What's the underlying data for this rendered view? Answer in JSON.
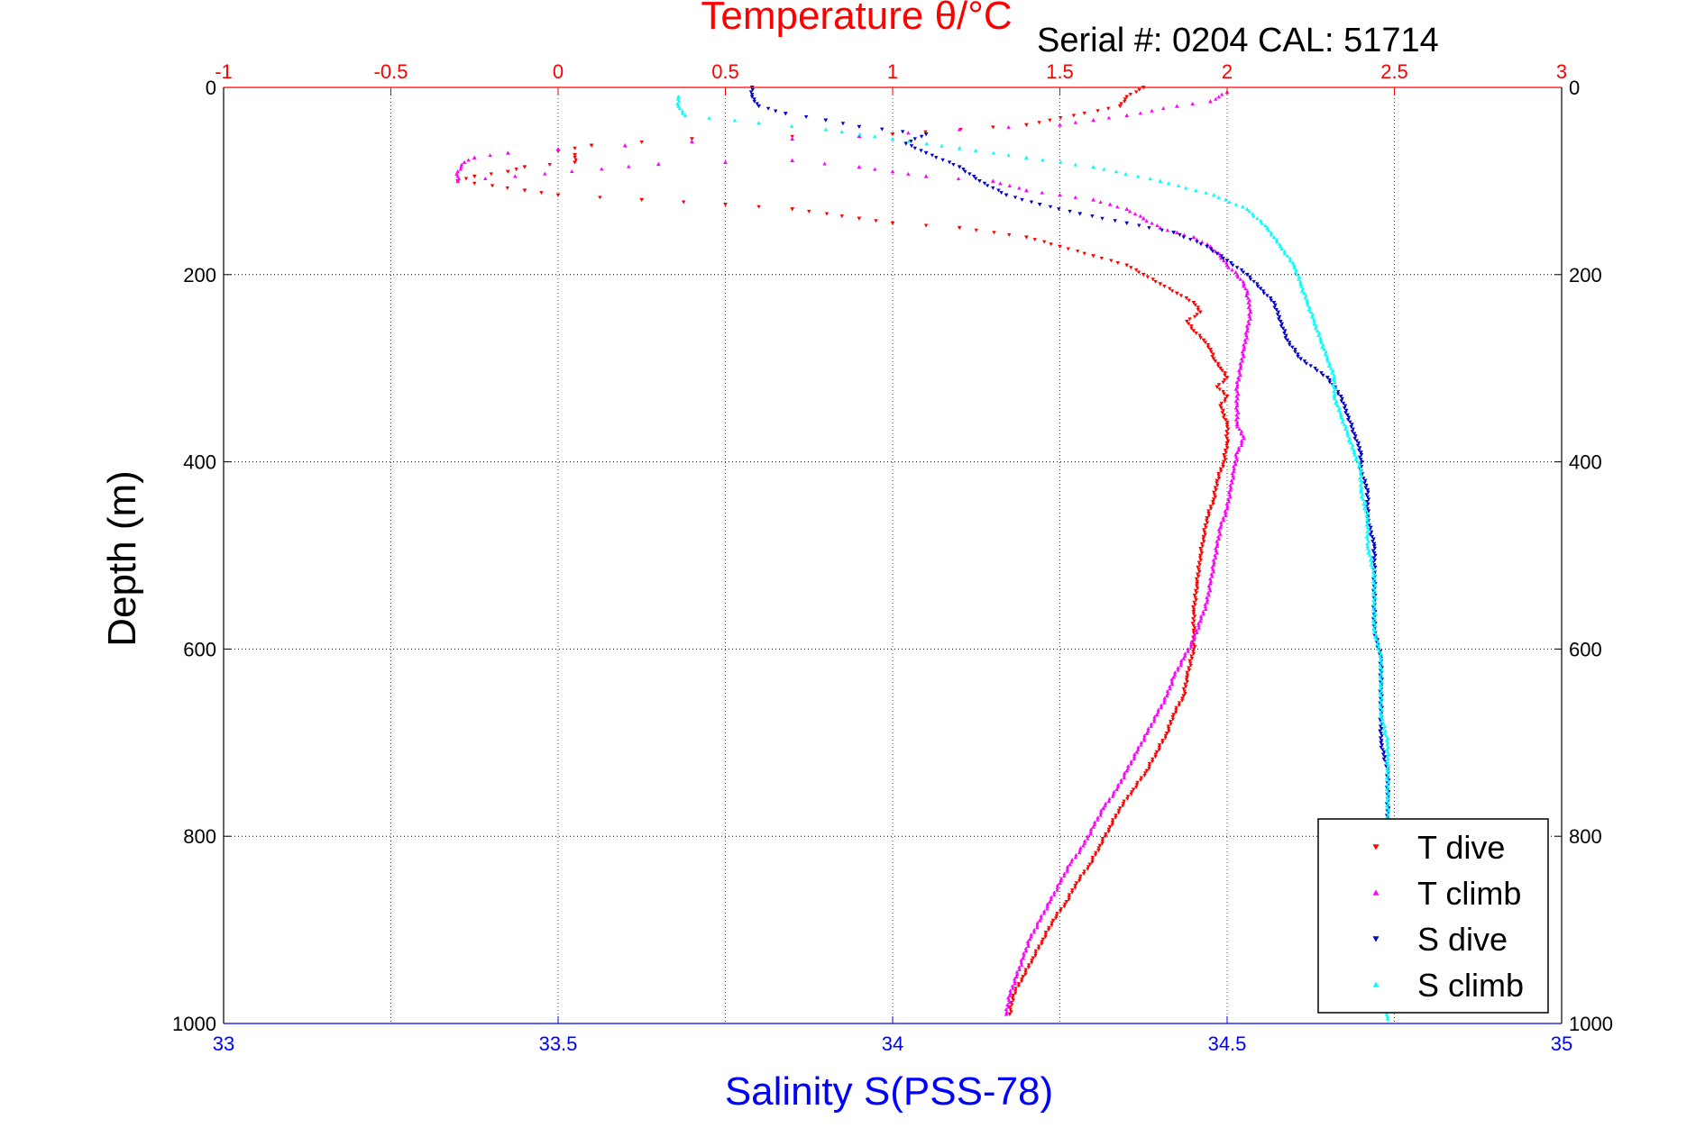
{
  "serial_text": "Serial #: 0204  CAL: 51714",
  "colors": {
    "t_dive": "#ff0000",
    "t_climb": "#ff00ff",
    "s_dive": "#0000cc",
    "s_climb": "#00ffff",
    "temperature_axis": "#ff0000",
    "salinity_axis": "#0000ff",
    "grid": "#000000"
  },
  "chart_data": {
    "type": "scatter",
    "title": "Temperature θ/°C",
    "xlabel": "Salinity S(PSS-78)",
    "ylabel": "Depth (m)",
    "temperature_axis": {
      "range": [
        -1,
        3
      ],
      "ticks": [
        -1,
        -0.5,
        0,
        0.5,
        1,
        1.5,
        2,
        2.5,
        3
      ],
      "tick_labels": [
        "-1",
        "-0.5",
        "0",
        "0.5",
        "1",
        "1.5",
        "2",
        "2.5",
        "3"
      ]
    },
    "salinity_axis": {
      "range": [
        33,
        35
      ],
      "ticks": [
        33,
        33.5,
        34,
        34.5,
        35
      ],
      "tick_labels": [
        "33",
        "33.5",
        "34",
        "34.5",
        "35"
      ]
    },
    "depth_axis": {
      "range": [
        0,
        1000
      ],
      "reversed": true,
      "ticks": [
        0,
        200,
        400,
        600,
        800,
        1000
      ],
      "tick_labels": [
        "0",
        "200",
        "400",
        "600",
        "800",
        "1000"
      ]
    },
    "grid": true,
    "legend_position": "bottom-right",
    "series": [
      {
        "name": "T dive",
        "axis": "temperature",
        "marker": "triangle-down",
        "points": [
          [
            1.75,
            0
          ],
          [
            1.7,
            10
          ],
          [
            1.68,
            20
          ],
          [
            1.4,
            40
          ],
          [
            1.0,
            50
          ],
          [
            0.4,
            55
          ],
          [
            0.1,
            62
          ],
          [
            0.0,
            68
          ],
          [
            0.05,
            72
          ],
          [
            0.05,
            80
          ],
          [
            -0.1,
            85
          ],
          [
            -0.15,
            90
          ],
          [
            -0.25,
            95
          ],
          [
            -0.3,
            100
          ],
          [
            -0.1,
            110
          ],
          [
            0.0,
            115
          ],
          [
            0.25,
            120
          ],
          [
            0.5,
            125
          ],
          [
            0.7,
            130
          ],
          [
            0.9,
            140
          ],
          [
            1.0,
            145
          ],
          [
            1.2,
            150
          ],
          [
            1.4,
            160
          ],
          [
            1.5,
            170
          ],
          [
            1.6,
            180
          ],
          [
            1.7,
            190
          ],
          [
            1.75,
            200
          ],
          [
            1.8,
            210
          ],
          [
            1.85,
            220
          ],
          [
            1.9,
            230
          ],
          [
            1.92,
            240
          ],
          [
            1.88,
            250
          ],
          [
            1.9,
            260
          ],
          [
            1.93,
            270
          ],
          [
            1.95,
            280
          ],
          [
            1.96,
            290
          ],
          [
            1.98,
            300
          ],
          [
            2.0,
            310
          ],
          [
            1.97,
            320
          ],
          [
            2.0,
            330
          ],
          [
            1.98,
            340
          ],
          [
            2.0,
            360
          ],
          [
            2.0,
            380
          ],
          [
            1.99,
            400
          ],
          [
            1.97,
            420
          ],
          [
            1.96,
            440
          ],
          [
            1.94,
            460
          ],
          [
            1.93,
            480
          ],
          [
            1.92,
            500
          ],
          [
            1.91,
            530
          ],
          [
            1.9,
            560
          ],
          [
            1.9,
            580
          ],
          [
            1.9,
            600
          ],
          [
            1.88,
            630
          ],
          [
            1.87,
            650
          ],
          [
            1.84,
            670
          ],
          [
            1.82,
            690
          ],
          [
            1.79,
            710
          ],
          [
            1.76,
            730
          ],
          [
            1.72,
            750
          ],
          [
            1.68,
            770
          ],
          [
            1.65,
            790
          ],
          [
            1.62,
            810
          ],
          [
            1.59,
            830
          ],
          [
            1.55,
            850
          ],
          [
            1.52,
            870
          ],
          [
            1.48,
            890
          ],
          [
            1.45,
            910
          ],
          [
            1.42,
            930
          ],
          [
            1.39,
            950
          ],
          [
            1.36,
            970
          ],
          [
            1.35,
            990
          ]
        ]
      },
      {
        "name": "T climb",
        "axis": "temperature",
        "marker": "triangle-up",
        "points": [
          [
            2.0,
            5
          ],
          [
            1.95,
            15
          ],
          [
            1.85,
            20
          ],
          [
            1.7,
            30
          ],
          [
            1.6,
            35
          ],
          [
            1.5,
            40
          ],
          [
            1.2,
            45
          ],
          [
            0.9,
            52
          ],
          [
            0.7,
            55
          ],
          [
            0.4,
            58
          ],
          [
            0.2,
            62
          ],
          [
            0.0,
            66
          ],
          [
            -0.15,
            70
          ],
          [
            -0.25,
            75
          ],
          [
            -0.28,
            80
          ],
          [
            -0.3,
            90
          ],
          [
            -0.3,
            100
          ],
          [
            0.3,
            82
          ],
          [
            0.5,
            80
          ],
          [
            0.7,
            78
          ],
          [
            0.9,
            85
          ],
          [
            1.0,
            90
          ],
          [
            1.1,
            95
          ],
          [
            1.3,
            100
          ],
          [
            1.4,
            110
          ],
          [
            1.5,
            115
          ],
          [
            1.6,
            120
          ],
          [
            1.65,
            125
          ],
          [
            1.7,
            130
          ],
          [
            1.75,
            140
          ],
          [
            1.8,
            150
          ],
          [
            1.85,
            155
          ],
          [
            1.9,
            160
          ],
          [
            1.95,
            170
          ],
          [
            1.98,
            180
          ],
          [
            2.0,
            190
          ],
          [
            2.03,
            200
          ],
          [
            2.05,
            210
          ],
          [
            2.06,
            220
          ],
          [
            2.07,
            240
          ],
          [
            2.06,
            260
          ],
          [
            2.05,
            280
          ],
          [
            2.04,
            300
          ],
          [
            2.03,
            320
          ],
          [
            2.03,
            340
          ],
          [
            2.03,
            360
          ],
          [
            2.05,
            375
          ],
          [
            2.03,
            390
          ],
          [
            2.02,
            410
          ],
          [
            2.01,
            430
          ],
          [
            2.0,
            450
          ],
          [
            1.98,
            470
          ],
          [
            1.97,
            490
          ],
          [
            1.96,
            510
          ],
          [
            1.95,
            530
          ],
          [
            1.94,
            550
          ],
          [
            1.92,
            570
          ],
          [
            1.9,
            590
          ],
          [
            1.87,
            610
          ],
          [
            1.84,
            630
          ],
          [
            1.82,
            650
          ],
          [
            1.79,
            670
          ],
          [
            1.76,
            690
          ],
          [
            1.73,
            710
          ],
          [
            1.7,
            730
          ],
          [
            1.67,
            750
          ],
          [
            1.63,
            770
          ],
          [
            1.6,
            790
          ],
          [
            1.57,
            810
          ],
          [
            1.53,
            830
          ],
          [
            1.5,
            850
          ],
          [
            1.47,
            870
          ],
          [
            1.44,
            890
          ],
          [
            1.41,
            910
          ],
          [
            1.39,
            930
          ],
          [
            1.37,
            950
          ],
          [
            1.35,
            970
          ],
          [
            1.34,
            990
          ]
        ]
      },
      {
        "name": "S dive",
        "axis": "salinity",
        "marker": "triangle-down",
        "points": [
          [
            33.79,
            0
          ],
          [
            33.79,
            10
          ],
          [
            33.8,
            20
          ],
          [
            33.84,
            28
          ],
          [
            33.9,
            35
          ],
          [
            33.95,
            42
          ],
          [
            34.05,
            50
          ],
          [
            34.02,
            60
          ],
          [
            34.05,
            70
          ],
          [
            34.1,
            85
          ],
          [
            34.13,
            100
          ],
          [
            34.17,
            115
          ],
          [
            34.22,
            125
          ],
          [
            34.28,
            135
          ],
          [
            34.35,
            145
          ],
          [
            34.42,
            155
          ],
          [
            34.47,
            170
          ],
          [
            34.5,
            185
          ],
          [
            34.53,
            200
          ],
          [
            34.55,
            215
          ],
          [
            34.57,
            230
          ],
          [
            34.58,
            250
          ],
          [
            34.59,
            270
          ],
          [
            34.61,
            290
          ],
          [
            34.65,
            310
          ],
          [
            34.67,
            330
          ],
          [
            34.68,
            350
          ],
          [
            34.69,
            370
          ],
          [
            34.7,
            390
          ],
          [
            34.7,
            410
          ],
          [
            34.71,
            430
          ],
          [
            34.71,
            460
          ],
          [
            34.72,
            490
          ],
          [
            34.72,
            520
          ],
          [
            34.72,
            550
          ],
          [
            34.72,
            580
          ],
          [
            34.73,
            610
          ],
          [
            34.73,
            640
          ],
          [
            34.73,
            670
          ],
          [
            34.73,
            700
          ],
          [
            34.74,
            730
          ],
          [
            34.74,
            760
          ],
          [
            34.74,
            790
          ]
        ]
      },
      {
        "name": "S climb",
        "axis": "salinity",
        "marker": "triangle-up",
        "points": [
          [
            33.68,
            10
          ],
          [
            33.68,
            20
          ],
          [
            33.69,
            30
          ],
          [
            33.8,
            38
          ],
          [
            33.9,
            45
          ],
          [
            34.0,
            55
          ],
          [
            34.1,
            65
          ],
          [
            34.2,
            75
          ],
          [
            34.3,
            85
          ],
          [
            34.4,
            100
          ],
          [
            34.48,
            115
          ],
          [
            34.53,
            130
          ],
          [
            34.56,
            150
          ],
          [
            34.58,
            170
          ],
          [
            34.6,
            190
          ],
          [
            34.61,
            210
          ],
          [
            34.62,
            230
          ],
          [
            34.63,
            250
          ],
          [
            34.64,
            270
          ],
          [
            34.65,
            290
          ],
          [
            34.66,
            310
          ],
          [
            34.66,
            330
          ],
          [
            34.67,
            350
          ],
          [
            34.68,
            370
          ],
          [
            34.69,
            390
          ],
          [
            34.7,
            410
          ],
          [
            34.7,
            430
          ],
          [
            34.71,
            460
          ],
          [
            34.71,
            490
          ],
          [
            34.72,
            520
          ],
          [
            34.72,
            550
          ],
          [
            34.72,
            580
          ],
          [
            34.73,
            610
          ],
          [
            34.73,
            640
          ],
          [
            34.73,
            670
          ],
          [
            34.74,
            700
          ],
          [
            34.74,
            730
          ],
          [
            34.74,
            760
          ],
          [
            34.74,
            790
          ],
          [
            34.74,
            820
          ],
          [
            34.74,
            850
          ],
          [
            34.74,
            880
          ],
          [
            34.74,
            910
          ],
          [
            34.74,
            940
          ],
          [
            34.74,
            970
          ],
          [
            34.74,
            995
          ]
        ]
      }
    ]
  }
}
